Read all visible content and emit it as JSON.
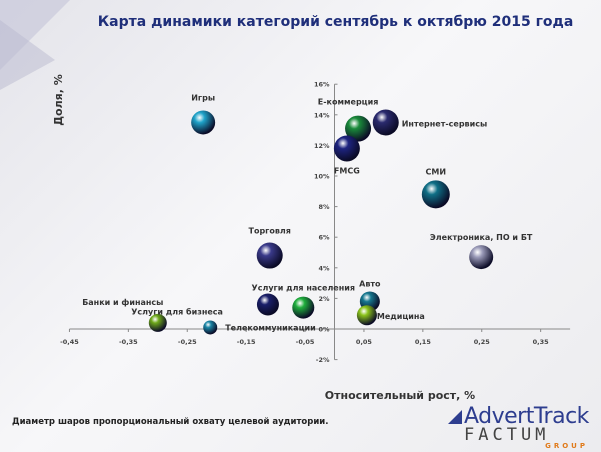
{
  "chart_data": {
    "type": "scatter",
    "title": "Карта динамики категорий сентябрь к октябрю 2015 года",
    "xlabel": "Относительный рост, %",
    "ylabel": "Доля, %",
    "xlim": [
      -0.45,
      0.4
    ],
    "ylim": [
      -2,
      16
    ],
    "x_ticks": [
      "-0,45",
      "-0,35",
      "-0,25",
      "-0,15",
      "-0,05",
      "0,05",
      "0,15",
      "0,25",
      "0,35"
    ],
    "x_tick_values": [
      -0.45,
      -0.35,
      -0.25,
      -0.15,
      -0.05,
      0.05,
      0.15,
      0.25,
      0.35
    ],
    "y_ticks": [
      "-2%",
      "0%",
      "2%",
      "4%",
      "6%",
      "8%",
      "10%",
      "12%",
      "14%",
      "16%"
    ],
    "y_tick_values": [
      -2,
      0,
      2,
      4,
      6,
      8,
      10,
      12,
      14,
      16
    ],
    "grid": false,
    "series": [
      {
        "name": "Игры",
        "x": -0.223,
        "y": 13.5,
        "size": 12,
        "color": "#1fa3c9"
      },
      {
        "name": "E-коммерция",
        "x": 0.04,
        "y": 13.1,
        "size": 13,
        "color": "#1a8a3a"
      },
      {
        "name": "Интернет-сервисы",
        "x": 0.087,
        "y": 13.5,
        "size": 13,
        "color": "#2a2a6e"
      },
      {
        "name": "FMCG",
        "x": 0.021,
        "y": 11.8,
        "size": 13,
        "color": "#1e2480"
      },
      {
        "name": "СМИ",
        "x": 0.172,
        "y": 8.8,
        "size": 14,
        "color": "#0f6f86"
      },
      {
        "name": "Электроника, ПО и БТ",
        "x": 0.249,
        "y": 4.7,
        "size": 12,
        "color": "#9a9ab8"
      },
      {
        "name": "Торговля",
        "x": -0.11,
        "y": 4.8,
        "size": 13,
        "color": "#3a3a8a"
      },
      {
        "name": "Услуги для бизнеса",
        "x": -0.113,
        "y": 1.6,
        "size": 11,
        "color": "#1a1f6a"
      },
      {
        "name": "Услуги для населения",
        "x": -0.053,
        "y": 1.4,
        "size": 11,
        "color": "#1fae3c"
      },
      {
        "name": "Авто",
        "x": 0.06,
        "y": 1.8,
        "size": 10,
        "color": "#16788f"
      },
      {
        "name": "Медицина",
        "x": 0.055,
        "y": 0.9,
        "size": 10,
        "color": "#8ac21a"
      },
      {
        "name": "Банки и финансы",
        "x": -0.3,
        "y": 0.4,
        "size": 9,
        "color": "#6ea81a"
      },
      {
        "name": "Телекоммуникации",
        "x": -0.211,
        "y": 0.1,
        "size": 7,
        "color": "#1a86a6"
      }
    ]
  },
  "footnote": "Диаметр шаров пропорциональный охвату целевой аудитории.",
  "logo": {
    "line1": "AdvertTrack",
    "line2": "FACTUM",
    "line3": "GROUP"
  }
}
